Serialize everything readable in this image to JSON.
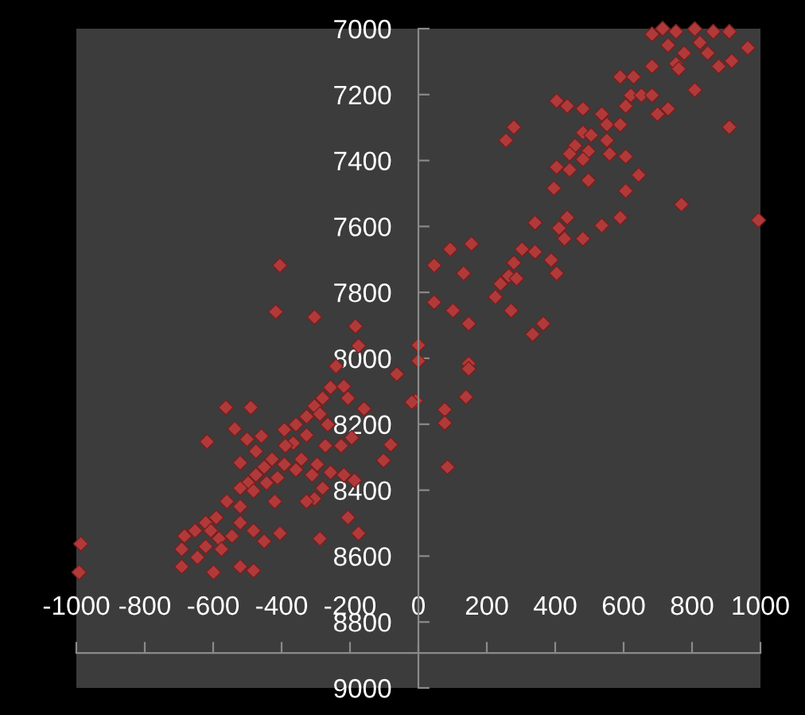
{
  "chart_data": {
    "type": "scatter",
    "color": "#b03a3a",
    "marker": "diamond",
    "grid": false,
    "xlim": [
      -1000,
      1000
    ],
    "ylim": [
      9000,
      7000
    ],
    "xticks": [
      -1000,
      -800,
      -600,
      -400,
      -200,
      0,
      200,
      400,
      600,
      800,
      1000
    ],
    "yticks": [
      7000,
      7200,
      7400,
      7600,
      7800,
      8000,
      8200,
      8400,
      8600,
      8800,
      9000
    ],
    "x": [
      683,
      714,
      753,
      808,
      862,
      909,
      963,
      730,
      777,
      846,
      823,
      683,
      753,
      761,
      878,
      916,
      808,
      909,
      590,
      629,
      621,
      652,
      683,
      606,
      699,
      730,
      404,
      435,
      481,
      536,
      551,
      590,
      279,
      256,
      481,
      505,
      551,
      458,
      497,
      442,
      481,
      559,
      606,
      404,
      442,
      497,
      644,
      396,
      606,
      769,
      994,
      341,
      435,
      411,
      427,
      481,
      536,
      590,
      46,
      93,
      155,
      132,
      303,
      341,
      279,
      388,
      404,
      264,
      287,
      240,
      225,
      271,
      46,
      101,
      147,
      334,
      365,
      0,
      147,
      0,
      -8,
      147,
      139,
      77,
      77,
      85,
      -405,
      -417,
      -304,
      -184,
      -175,
      -241,
      -63,
      -19,
      -206,
      -257,
      -218,
      -159,
      -563,
      -490,
      -537,
      -618,
      -501,
      -459,
      -475,
      -521,
      -392,
      -358,
      -327,
      -304,
      -280,
      -288,
      -265,
      -327,
      -366,
      -389,
      -272,
      -226,
      -195,
      -81,
      -102,
      -342,
      -296,
      -358,
      -392,
      -428,
      -451,
      -475,
      -498,
      -521,
      -482,
      -444,
      -412,
      -420,
      -311,
      -257,
      -218,
      -187,
      -280,
      -304,
      -327,
      -560,
      -521,
      -521,
      -482,
      -451,
      -405,
      -288,
      -206,
      -175,
      -591,
      -622,
      -653,
      -684,
      -692,
      -646,
      -599,
      -521,
      -482,
      -692,
      -607,
      -583,
      -545,
      -622,
      -576,
      -987,
      -992
    ],
    "values": [
      7017,
      7000,
      7009,
      7001,
      7009,
      7009,
      7058,
      7050,
      7074,
      7074,
      7042,
      7114,
      7106,
      7122,
      7114,
      7098,
      7186,
      7299,
      7146,
      7146,
      7202,
      7202,
      7202,
      7235,
      7259,
      7243,
      7219,
      7235,
      7243,
      7259,
      7291,
      7291,
      7299,
      7339,
      7315,
      7323,
      7339,
      7355,
      7372,
      7380,
      7396,
      7380,
      7388,
      7420,
      7428,
      7460,
      7444,
      7484,
      7492,
      7533,
      7581,
      7589,
      7573,
      7605,
      7637,
      7637,
      7597,
      7573,
      7718,
      7669,
      7653,
      7742,
      7669,
      7677,
      7710,
      7702,
      7742,
      7750,
      7758,
      7774,
      7814,
      7855,
      7830,
      7855,
      7895,
      7927,
      7895,
      7960,
      8016,
      8008,
      8129,
      8032,
      8117,
      8156,
      8196,
      8330,
      7718,
      7859,
      7875,
      7903,
      7962,
      8024,
      8048,
      8133,
      8121,
      8088,
      8085,
      8153,
      8149,
      8149,
      8214,
      8253,
      8246,
      8236,
      8282,
      8317,
      8217,
      8201,
      8177,
      8145,
      8121,
      8169,
      8201,
      8233,
      8257,
      8265,
      8265,
      8265,
      8241,
      8262,
      8310,
      8306,
      8322,
      8338,
      8322,
      8306,
      8330,
      8354,
      8378,
      8394,
      8402,
      8378,
      8362,
      8434,
      8354,
      8346,
      8354,
      8370,
      8394,
      8426,
      8434,
      8434,
      8450,
      8499,
      8523,
      8555,
      8531,
      8547,
      8483,
      8531,
      8483,
      8499,
      8523,
      8539,
      8579,
      8604,
      8649,
      8632,
      8644,
      8632,
      8523,
      8547,
      8539,
      8571,
      8579,
      8563,
      8649
    ]
  }
}
